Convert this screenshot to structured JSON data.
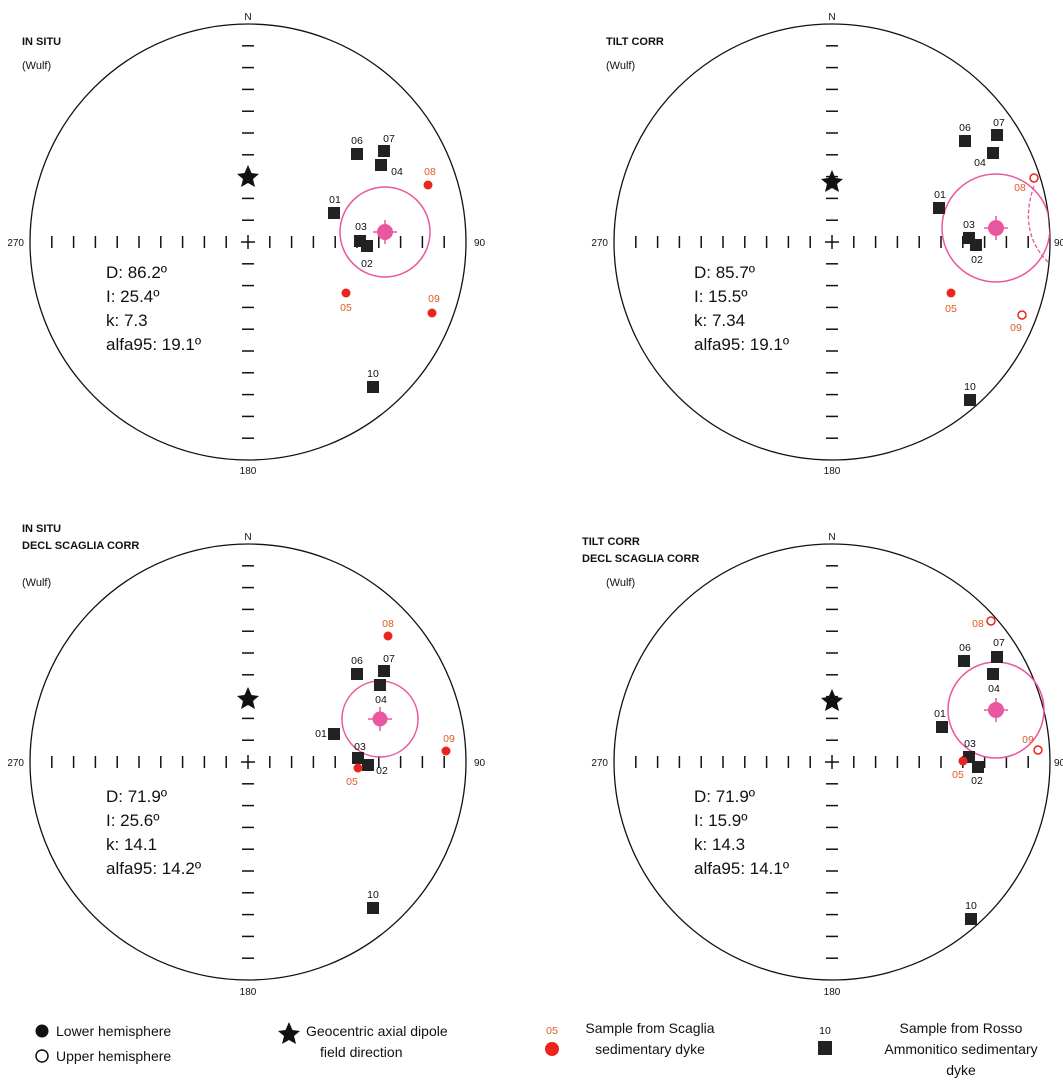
{
  "panels": [
    {
      "titles": [
        "IN SITU"
      ],
      "projection": "(Wulf)",
      "directions": {
        "north": "N",
        "east": "90",
        "south": "180",
        "west": "270"
      },
      "stats": [
        "D: 86.2º",
        "I: 25.4º",
        "k: 7.3",
        "alfa95: 19.1º"
      ]
    },
    {
      "titles": [
        "TILT CORR"
      ],
      "projection": "(Wulf)",
      "directions": {
        "north": "N",
        "east": "90",
        "south": "180",
        "west": "270"
      },
      "stats": [
        "D: 85.7º",
        "I: 15.5º",
        "k: 7.34",
        "alfa95: 19.1º"
      ]
    },
    {
      "titles": [
        "IN SITU",
        "DECL SCAGLIA CORR"
      ],
      "projection": "(Wulf)",
      "directions": {
        "north": "N",
        "east": "90",
        "south": "180",
        "west": "270"
      },
      "stats": [
        "D: 71.9º",
        "I: 25.6º",
        "k: 14.1",
        "alfa95: 14.2º"
      ]
    },
    {
      "titles": [
        "TILT CORR",
        "DECL SCAGLIA CORR"
      ],
      "projection": "(Wulf)",
      "directions": {
        "north": "N",
        "east": "90",
        "south": "180",
        "west": "270"
      },
      "stats": [
        "D: 71.9º",
        "I: 15.9º",
        "k: 14.3",
        "alfa95: 14.1º"
      ]
    }
  ],
  "colors": {
    "scaglia": "#e8251f",
    "scaglia_label": "#e05a1e",
    "rosso": "#222222",
    "mean": "#e9589f",
    "ink": "#111111"
  },
  "legend": {
    "lower_hemisphere": "Lower hemisphere",
    "upper_hemisphere": "Upper hemisphere",
    "gad": [
      "Geocentric axial dipole",
      "field direction"
    ],
    "scaglia_sample_label": "05",
    "scaglia": [
      "Sample from Scaglia",
      "sedimentary dyke"
    ],
    "rosso_sample_label": "10",
    "rosso": [
      "Sample from Rosso",
      "Ammonitico sedimentary",
      "dyke"
    ]
  },
  "icons": {
    "lower": "filled-circle-icon",
    "upper": "open-circle-icon",
    "gad": "star-icon",
    "scaglia": "red-dot-icon",
    "rosso": "black-square-icon"
  }
}
